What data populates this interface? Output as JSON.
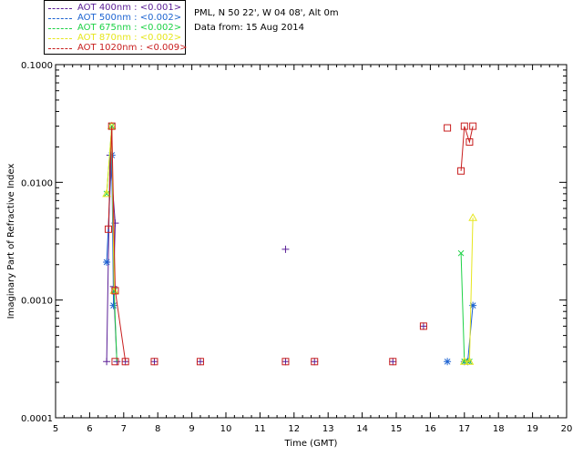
{
  "legend": [
    {
      "label": "AOT  400nm : <0.001>",
      "color": "#5a1e96"
    },
    {
      "label": "AOT  500nm : <0.002>",
      "color": "#1e64d2"
    },
    {
      "label": "AOT  675nm : <0.002>",
      "color": "#1ed246"
    },
    {
      "label": "AOT  870nm : <0.002>",
      "color": "#e6e61e"
    },
    {
      "label": "AOT 1020nm : <0.009>",
      "color": "#c81e1e"
    }
  ],
  "info": {
    "site": "PML, N 50 22', W 04 08', Alt 0m",
    "date": "Data from: 15 Aug 2014"
  },
  "chart_data": {
    "type": "line",
    "xlabel": "Time (GMT)",
    "ylabel": "Imaginary Part of Refractive Index",
    "xlim": [
      5,
      20
    ],
    "ylim": [
      0.0001,
      0.1
    ],
    "yscale": "log",
    "xticks": [
      5,
      6,
      7,
      8,
      9,
      10,
      11,
      12,
      13,
      14,
      15,
      16,
      17,
      18,
      19,
      20
    ],
    "yticks": [
      0.0001,
      0.001,
      0.01,
      0.1
    ],
    "ytick_labels": [
      "0.0001",
      "0.0010",
      "0.0100",
      "0.1000"
    ],
    "grid": false,
    "series": [
      {
        "name": "AOT  400nm : <0.001>",
        "color": "#5a1e96",
        "marker": "plus",
        "lines": [
          [
            [
              6.5,
              0.0003
            ],
            [
              6.6,
              0.017
            ],
            [
              6.75,
              0.0045
            ],
            [
              6.7,
              0.0013
            ],
            [
              6.8,
              0.0003
            ]
          ]
        ],
        "points": [
          [
            6.5,
            0.0003
          ],
          [
            6.6,
            0.017
          ],
          [
            6.75,
            0.0045
          ],
          [
            6.7,
            0.0013
          ],
          [
            6.8,
            0.0003
          ],
          [
            7.05,
            0.0003
          ],
          [
            7.9,
            0.0003
          ],
          [
            9.25,
            0.0003
          ],
          [
            11.75,
            0.0027
          ],
          [
            11.75,
            0.0003
          ],
          [
            12.6,
            0.0003
          ],
          [
            14.9,
            0.0003
          ],
          [
            15.8,
            0.0006
          ]
        ]
      },
      {
        "name": "AOT  500nm : <0.002>",
        "color": "#1e64d2",
        "marker": "asterisk",
        "lines": [
          [
            [
              6.5,
              0.0021
            ],
            [
              6.65,
              0.017
            ],
            [
              6.7,
              0.0009
            ]
          ],
          [
            [
              17.0,
              0.0003
            ],
            [
              17.1,
              0.0003
            ],
            [
              17.25,
              0.0009
            ]
          ]
        ],
        "points": [
          [
            6.5,
            0.0021
          ],
          [
            6.65,
            0.017
          ],
          [
            6.7,
            0.0009
          ],
          [
            16.5,
            0.0003
          ],
          [
            17.0,
            0.0003
          ],
          [
            17.1,
            0.0003
          ],
          [
            17.25,
            0.0009
          ]
        ]
      },
      {
        "name": "AOT  675nm : <0.002>",
        "color": "#1ed246",
        "marker": "x",
        "lines": [
          [
            [
              6.5,
              0.008
            ],
            [
              6.65,
              0.03
            ],
            [
              6.72,
              0.0012
            ],
            [
              6.8,
              0.0003
            ]
          ],
          [
            [
              16.9,
              0.0025
            ],
            [
              17.0,
              0.0003
            ],
            [
              17.15,
              0.0003
            ]
          ]
        ],
        "points": [
          [
            6.5,
            0.008
          ],
          [
            6.65,
            0.03
          ],
          [
            6.72,
            0.0012
          ],
          [
            16.9,
            0.0025
          ],
          [
            17.0,
            0.0003
          ],
          [
            17.15,
            0.0003
          ]
        ]
      },
      {
        "name": "AOT  870nm : <0.002>",
        "color": "#e6e61e",
        "marker": "triangle",
        "lines": [
          [
            [
              6.5,
              0.008
            ],
            [
              6.65,
              0.03
            ],
            [
              6.72,
              0.0012
            ]
          ],
          [
            [
              17.0,
              0.0003
            ],
            [
              17.15,
              0.0003
            ],
            [
              17.25,
              0.005
            ]
          ]
        ],
        "points": [
          [
            6.5,
            0.008
          ],
          [
            6.65,
            0.03
          ],
          [
            6.72,
            0.0012
          ],
          [
            17.0,
            0.0003
          ],
          [
            17.15,
            0.0003
          ],
          [
            17.25,
            0.005
          ]
        ]
      },
      {
        "name": "AOT 1020nm : <0.009>",
        "color": "#c81e1e",
        "marker": "square",
        "lines": [
          [
            [
              6.55,
              0.004
            ],
            [
              6.65,
              0.03
            ],
            [
              6.75,
              0.0012
            ],
            [
              7.05,
              0.0003
            ]
          ],
          [
            [
              16.9,
              0.0125
            ],
            [
              17.0,
              0.03
            ],
            [
              17.15,
              0.022
            ],
            [
              17.25,
              0.03
            ]
          ]
        ],
        "points": [
          [
            6.55,
            0.004
          ],
          [
            6.65,
            0.03
          ],
          [
            6.75,
            0.0012
          ],
          [
            6.75,
            0.0003
          ],
          [
            7.05,
            0.0003
          ],
          [
            7.9,
            0.0003
          ],
          [
            9.25,
            0.0003
          ],
          [
            11.75,
            0.0003
          ],
          [
            12.6,
            0.0003
          ],
          [
            14.9,
            0.0003
          ],
          [
            15.8,
            0.0006
          ],
          [
            16.5,
            0.029
          ],
          [
            16.9,
            0.0125
          ],
          [
            17.0,
            0.03
          ],
          [
            17.15,
            0.022
          ],
          [
            17.25,
            0.03
          ]
        ]
      }
    ]
  }
}
